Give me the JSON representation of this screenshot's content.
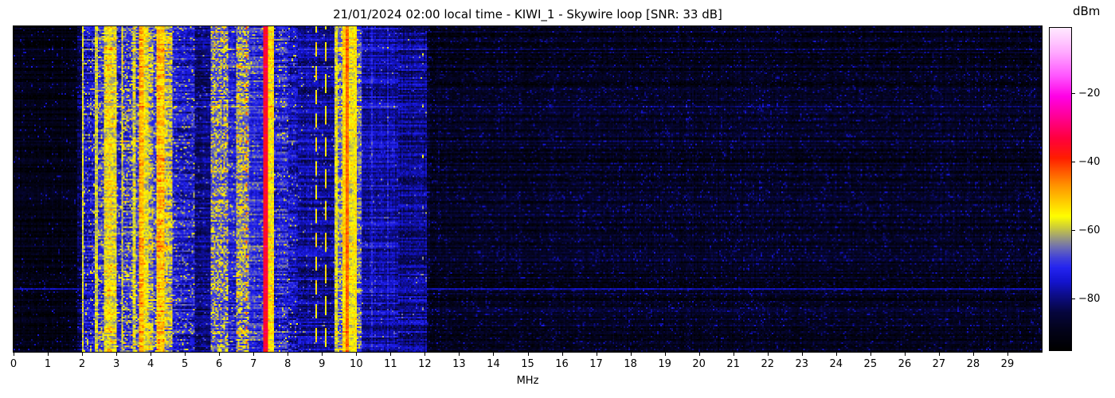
{
  "chart_data": {
    "type": "heatmap",
    "subtype": "spectrogram",
    "title": "21/01/2024 02:00 local time - KIWI_1 - Skywire loop [SNR: 33 dB]",
    "xlabel": "MHz",
    "x_range_mhz": [
      0,
      30
    ],
    "x_ticks": [
      0,
      1,
      2,
      3,
      4,
      5,
      6,
      7,
      8,
      9,
      10,
      11,
      12,
      13,
      14,
      15,
      16,
      17,
      18,
      19,
      20,
      21,
      22,
      23,
      24,
      25,
      26,
      27,
      28,
      29
    ],
    "colorbar": {
      "label": "dBm",
      "tick_values": [
        -20,
        -40,
        -60,
        -80
      ],
      "tick_labels": [
        "−20",
        "−40",
        "−60",
        "−80"
      ],
      "value_range_dbm": [
        -95,
        -1
      ]
    },
    "colormap_stops": [
      {
        "v": -95,
        "c": "#000000"
      },
      {
        "v": -89,
        "c": "#03031c"
      },
      {
        "v": -84,
        "c": "#06063e"
      },
      {
        "v": -79,
        "c": "#0d0d8a"
      },
      {
        "v": -75,
        "c": "#1414cf"
      },
      {
        "v": -71,
        "c": "#2424f0"
      },
      {
        "v": -68,
        "c": "#4444d8"
      },
      {
        "v": -65,
        "c": "#6f6fb2"
      },
      {
        "v": -62,
        "c": "#9e9e78"
      },
      {
        "v": -59,
        "c": "#d0d036"
      },
      {
        "v": -56,
        "c": "#ffff00"
      },
      {
        "v": -52,
        "c": "#ffd000"
      },
      {
        "v": -47,
        "c": "#ff9400"
      },
      {
        "v": -43,
        "c": "#ff5a00"
      },
      {
        "v": -39,
        "c": "#ff1e00"
      },
      {
        "v": -33,
        "c": "#ff0040"
      },
      {
        "v": -27,
        "c": "#ff0094"
      },
      {
        "v": -21,
        "c": "#ff00e6"
      },
      {
        "v": -15,
        "c": "#ff55ff"
      },
      {
        "v": -8,
        "c": "#ffabff"
      },
      {
        "v": -1,
        "c": "#ffeaff"
      }
    ],
    "bands": [
      {
        "f0": 0.0,
        "f1": 1.86,
        "base": -91,
        "spread": 5,
        "fleck_p": 0.05,
        "fleck_boost": 11
      },
      {
        "f0": 1.86,
        "f1": 2.0,
        "base": -83,
        "spread": 7,
        "fleck_p": 0.06,
        "fleck_boost": 8
      },
      {
        "f0": 2.0,
        "f1": 2.06,
        "base": -59,
        "spread": 6,
        "fleck_p": 0,
        "fleck_boost": 0
      },
      {
        "f0": 2.06,
        "f1": 2.38,
        "base": -76,
        "spread": 9,
        "fleck_p": 0.18,
        "fleck_boost": 13
      },
      {
        "f0": 2.38,
        "f1": 2.44,
        "base": -58,
        "spread": 6,
        "fleck_p": 0,
        "fleck_boost": 0
      },
      {
        "f0": 2.44,
        "f1": 2.62,
        "base": -71,
        "spread": 10,
        "fleck_p": 0.25,
        "fleck_boost": 12
      },
      {
        "f0": 2.62,
        "f1": 3.0,
        "base": -58,
        "spread": 6,
        "fleck_p": 0.3,
        "fleck_boost": 7
      },
      {
        "f0": 3.0,
        "f1": 3.13,
        "base": -73,
        "spread": 9,
        "fleck_p": 0.2,
        "fleck_boost": 12
      },
      {
        "f0": 3.13,
        "f1": 3.21,
        "base": -60,
        "spread": 7,
        "fleck_p": 0.1,
        "fleck_boost": 5
      },
      {
        "f0": 3.21,
        "f1": 3.46,
        "base": -71,
        "spread": 10,
        "fleck_p": 0.3,
        "fleck_boost": 12
      },
      {
        "f0": 3.46,
        "f1": 3.56,
        "base": -59,
        "spread": 7,
        "fleck_p": 0.1,
        "fleck_boost": 5
      },
      {
        "f0": 3.56,
        "f1": 3.65,
        "base": -70,
        "spread": 9,
        "fleck_p": 0.25,
        "fleck_boost": 10
      },
      {
        "f0": 3.65,
        "f1": 3.81,
        "base": -50,
        "spread": 6,
        "fleck_p": 0.1,
        "fleck_boost": 5
      },
      {
        "f0": 3.81,
        "f1": 3.95,
        "base": -57,
        "spread": 6,
        "fleck_p": 0.15,
        "fleck_boost": 5
      },
      {
        "f0": 3.95,
        "f1": 4.1,
        "base": -64,
        "spread": 9,
        "fleck_p": 0.3,
        "fleck_boost": 8
      },
      {
        "f0": 4.1,
        "f1": 4.19,
        "base": -70,
        "spread": 9,
        "fleck_p": 0.2,
        "fleck_boost": 10
      },
      {
        "f0": 4.19,
        "f1": 4.4,
        "base": -51,
        "spread": 7,
        "fleck_p": 0.15,
        "fleck_boost": 6
      },
      {
        "f0": 4.4,
        "f1": 4.62,
        "base": -62,
        "spread": 9,
        "fleck_p": 0.3,
        "fleck_boost": 7
      },
      {
        "f0": 4.62,
        "f1": 5.28,
        "base": -74,
        "spread": 9,
        "fleck_p": 0.15,
        "fleck_boost": 13
      },
      {
        "f0": 5.28,
        "f1": 5.74,
        "base": -80,
        "spread": 6,
        "fleck_p": 0.05,
        "fleck_boost": 11
      },
      {
        "f0": 5.74,
        "f1": 6.24,
        "base": -68,
        "spread": 6,
        "fleck_p": 0.45,
        "fleck_boost": 12
      },
      {
        "f0": 6.24,
        "f1": 6.5,
        "base": -73,
        "spread": 8,
        "fleck_p": 0.15,
        "fleck_boost": 10
      },
      {
        "f0": 6.5,
        "f1": 6.85,
        "base": -66,
        "spread": 7,
        "fleck_p": 0.45,
        "fleck_boost": 11
      },
      {
        "f0": 6.85,
        "f1": 7.3,
        "base": -70,
        "spread": 8,
        "fleck_p": 0.12,
        "fleck_boost": 8
      },
      {
        "f0": 7.3,
        "f1": 7.4,
        "base": -35,
        "spread": 4,
        "fleck_p": 0,
        "fleck_boost": 0
      },
      {
        "f0": 7.4,
        "f1": 7.62,
        "base": -54,
        "spread": 6,
        "fleck_p": 0.1,
        "fleck_boost": 5
      },
      {
        "f0": 7.62,
        "f1": 8.02,
        "base": -73,
        "spread": 9,
        "fleck_p": 0.12,
        "fleck_boost": 11
      },
      {
        "f0": 8.02,
        "f1": 8.3,
        "base": -76,
        "spread": 8,
        "fleck_p": 0.08,
        "fleck_boost": 12
      },
      {
        "f0": 8.3,
        "f1": 9.35,
        "base": -78,
        "spread": 7,
        "fleck_p": 0.04,
        "fleck_boost": 12
      },
      {
        "f0": 9.35,
        "f1": 9.44,
        "base": -58,
        "spread": 6,
        "fleck_p": 0,
        "fleck_boost": 0
      },
      {
        "f0": 9.44,
        "f1": 9.6,
        "base": -65,
        "spread": 8,
        "fleck_p": 0.25,
        "fleck_boost": 8
      },
      {
        "f0": 9.6,
        "f1": 9.68,
        "base": -52,
        "spread": 5,
        "fleck_p": 0,
        "fleck_boost": 0
      },
      {
        "f0": 9.68,
        "f1": 9.78,
        "base": -44,
        "spread": 4,
        "fleck_p": 0,
        "fleck_boost": 0
      },
      {
        "f0": 9.78,
        "f1": 9.9,
        "base": -56,
        "spread": 6,
        "fleck_p": 0.1,
        "fleck_boost": 4
      },
      {
        "f0": 9.9,
        "f1": 10.0,
        "base": -55,
        "spread": 5,
        "fleck_p": 0,
        "fleck_boost": 0
      },
      {
        "f0": 10.0,
        "f1": 10.16,
        "base": -67,
        "spread": 8,
        "fleck_p": 0.15,
        "fleck_boost": 7
      },
      {
        "f0": 10.16,
        "f1": 11.2,
        "base": -77,
        "spread": 7,
        "fleck_p": 0.04,
        "fleck_boost": 9
      },
      {
        "f0": 11.2,
        "f1": 12.04,
        "base": -79,
        "spread": 7,
        "fleck_p": 0.03,
        "fleck_boost": 10
      },
      {
        "f0": 12.04,
        "f1": 30.01,
        "base": -89,
        "spread": 6,
        "fleck_p": 0.12,
        "fleck_boost": 8
      }
    ],
    "lines": [
      {
        "f": 6.775,
        "w": 0.05,
        "base": -44,
        "spread": 4,
        "dash": [
          2,
          7
        ]
      },
      {
        "f": 8.82,
        "w": 0.05,
        "base": -54,
        "spread": 4,
        "dash": [
          9,
          6
        ]
      },
      {
        "f": 9.12,
        "w": 0.06,
        "base": -54,
        "spread": 4,
        "dash": [
          12,
          8
        ]
      },
      {
        "f": 11.93,
        "w": 0.04,
        "base": -60,
        "spread": 5,
        "dash": [
          2,
          30
        ]
      },
      {
        "f": 10.45,
        "w": 0.05,
        "boost": 4
      },
      {
        "f": 10.9,
        "w": 0.04,
        "boost": 3
      },
      {
        "f": 13.45,
        "w": 0.03,
        "boost": 3
      },
      {
        "f": 17.95,
        "w": 0.03,
        "boost": 2.5
      }
    ],
    "row_events": [
      {
        "frac": 0.037,
        "boost": 4
      },
      {
        "frac": 0.066,
        "boost": 4
      },
      {
        "frac": 0.122,
        "boost": 5
      },
      {
        "frac": 0.245,
        "boost": 5
      },
      {
        "frac": 0.35,
        "boost": 3
      },
      {
        "frac": 0.672,
        "boost": 4
      },
      {
        "frac": 0.805,
        "boost": 13
      },
      {
        "frac": 0.935,
        "boost": 4
      }
    ]
  }
}
